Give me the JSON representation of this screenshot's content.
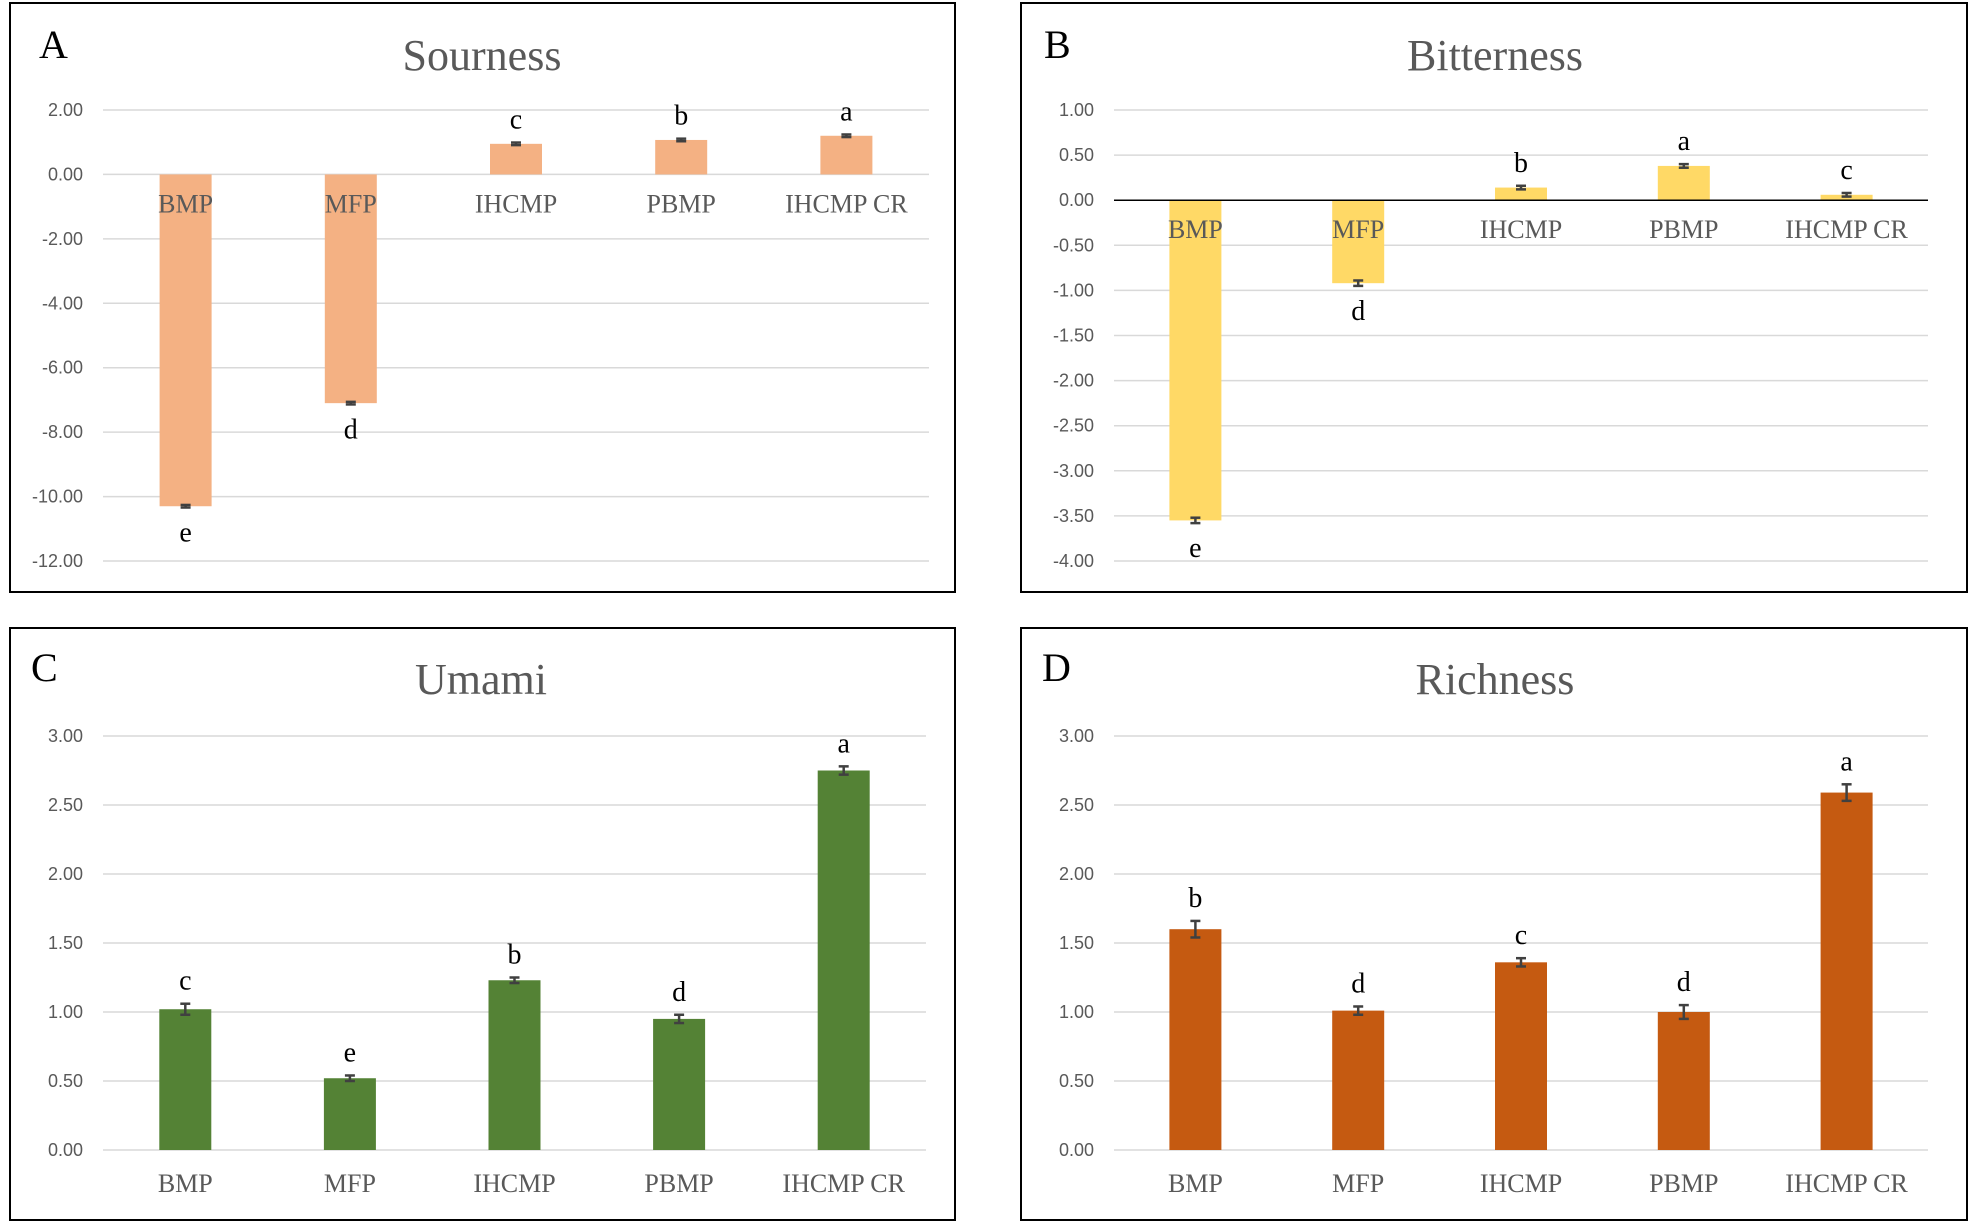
{
  "chart_data": [
    {
      "type": "bar",
      "panel_label": "A",
      "title": "Sourness",
      "categories": [
        "BMP",
        "MFP",
        "IHCMP",
        "PBMP",
        "IHCMP CR"
      ],
      "values": [
        -10.3,
        -7.1,
        0.95,
        1.07,
        1.2
      ],
      "errors": [
        0.04,
        0.04,
        0.04,
        0.04,
        0.04
      ],
      "significance": [
        "e",
        "d",
        "c",
        "b",
        "a"
      ],
      "color": "#f4b183",
      "ylim": [
        -12,
        2
      ],
      "yticks": [
        "2.00",
        "0.00",
        "-2.00",
        "-4.00",
        "-6.00",
        "-8.00",
        "-10.00",
        "-12.00"
      ],
      "category_labels_at_zero": true,
      "zero_line": false,
      "xlabel": "",
      "ylabel": ""
    },
    {
      "type": "bar",
      "panel_label": "B",
      "title": "Bitterness",
      "categories": [
        "BMP",
        "MFP",
        "IHCMP",
        "PBMP",
        "IHCMP CR"
      ],
      "values": [
        -3.55,
        -0.92,
        0.14,
        0.38,
        0.06
      ],
      "errors": [
        0.03,
        0.03,
        0.02,
        0.02,
        0.02
      ],
      "significance": [
        "e",
        "d",
        "b",
        "a",
        "c"
      ],
      "color": "#ffd966",
      "ylim": [
        -4,
        1
      ],
      "yticks": [
        "1.00",
        "0.50",
        "0.00",
        "-0.50",
        "-1.00",
        "-1.50",
        "-2.00",
        "-2.50",
        "-3.00",
        "-3.50",
        "-4.00"
      ],
      "category_labels_at_zero": true,
      "zero_line": true,
      "xlabel": "",
      "ylabel": ""
    },
    {
      "type": "bar",
      "panel_label": "C",
      "title": "Umami",
      "categories": [
        "BMP",
        "MFP",
        "IHCMP",
        "PBMP",
        "IHCMP CR"
      ],
      "values": [
        1.02,
        0.52,
        1.23,
        0.95,
        2.75
      ],
      "errors": [
        0.04,
        0.02,
        0.02,
        0.03,
        0.03
      ],
      "significance": [
        "c",
        "e",
        "b",
        "d",
        "a"
      ],
      "color": "#548235",
      "ylim": [
        0,
        3
      ],
      "yticks": [
        "3.00",
        "2.50",
        "2.00",
        "1.50",
        "1.00",
        "0.50",
        "0.00"
      ],
      "category_labels_at_zero": false,
      "zero_line": false,
      "xlabel": "",
      "ylabel": ""
    },
    {
      "type": "bar",
      "panel_label": "D",
      "title": "Richness",
      "categories": [
        "BMP",
        "MFP",
        "IHCMP",
        "PBMP",
        "IHCMP CR"
      ],
      "values": [
        1.6,
        1.01,
        1.36,
        1.0,
        2.59
      ],
      "errors": [
        0.06,
        0.03,
        0.03,
        0.05,
        0.06
      ],
      "significance": [
        "b",
        "d",
        "c",
        "d",
        "a"
      ],
      "color": "#c55a11",
      "ylim": [
        0,
        3
      ],
      "yticks": [
        "3.00",
        "2.50",
        "2.00",
        "1.50",
        "1.00",
        "0.50",
        "0.00"
      ],
      "category_labels_at_zero": false,
      "zero_line": false,
      "xlabel": "",
      "ylabel": ""
    }
  ]
}
